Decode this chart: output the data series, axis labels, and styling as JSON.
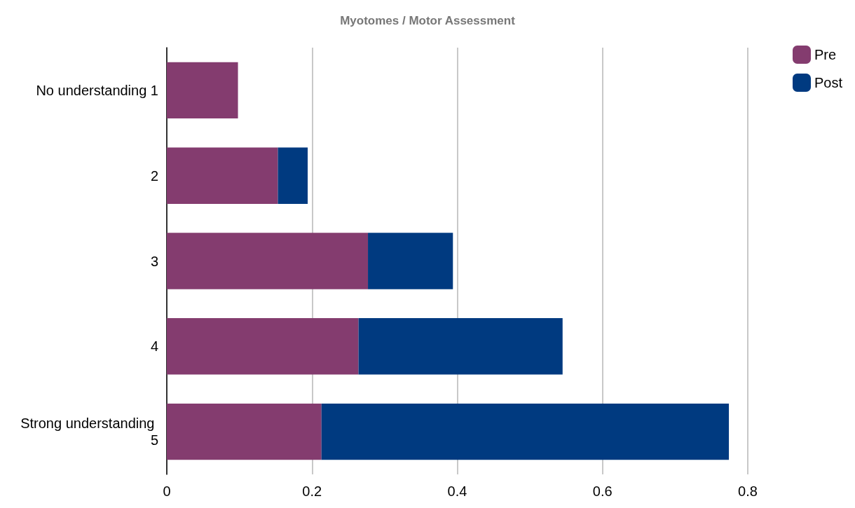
{
  "chart_data": {
    "type": "bar",
    "orientation": "horizontal",
    "stacked": true,
    "title": "Myotomes / Motor Assessment",
    "categories": [
      "No understanding 1",
      "2",
      "3",
      "4",
      "Strong understanding 5"
    ],
    "series": [
      {
        "name": "Pre",
        "color": "#843c6f",
        "values": [
          0.098,
          0.153,
          0.277,
          0.264,
          0.213
        ]
      },
      {
        "name": "Post",
        "color": "#003a80",
        "values": [
          0,
          0.041,
          0.117,
          0.281,
          0.561
        ]
      }
    ],
    "xlim": [
      0,
      0.8
    ],
    "xticks": [
      0,
      0.2,
      0.4,
      0.6,
      0.8
    ],
    "grid": "x",
    "legend": "top right"
  }
}
